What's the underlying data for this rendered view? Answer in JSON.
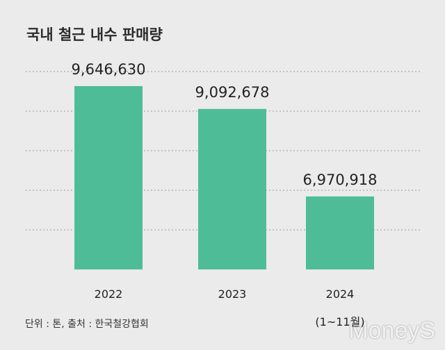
{
  "chart_data": {
    "type": "bar",
    "title": "국내 철근 내수 판매량",
    "categories": [
      "2022",
      "2023",
      "2024\n(1~11월)"
    ],
    "values": [
      9646630,
      9092678,
      6970918
    ],
    "value_labels": [
      "9,646,630",
      "9,092,678",
      "6,970,918"
    ],
    "color": "#4fbc98",
    "ylim": [
      5200000,
      10000000
    ],
    "grid": true,
    "footnote": "단위 : 톤, 출처 : 한국철강협회",
    "watermark": "MoneyS"
  }
}
